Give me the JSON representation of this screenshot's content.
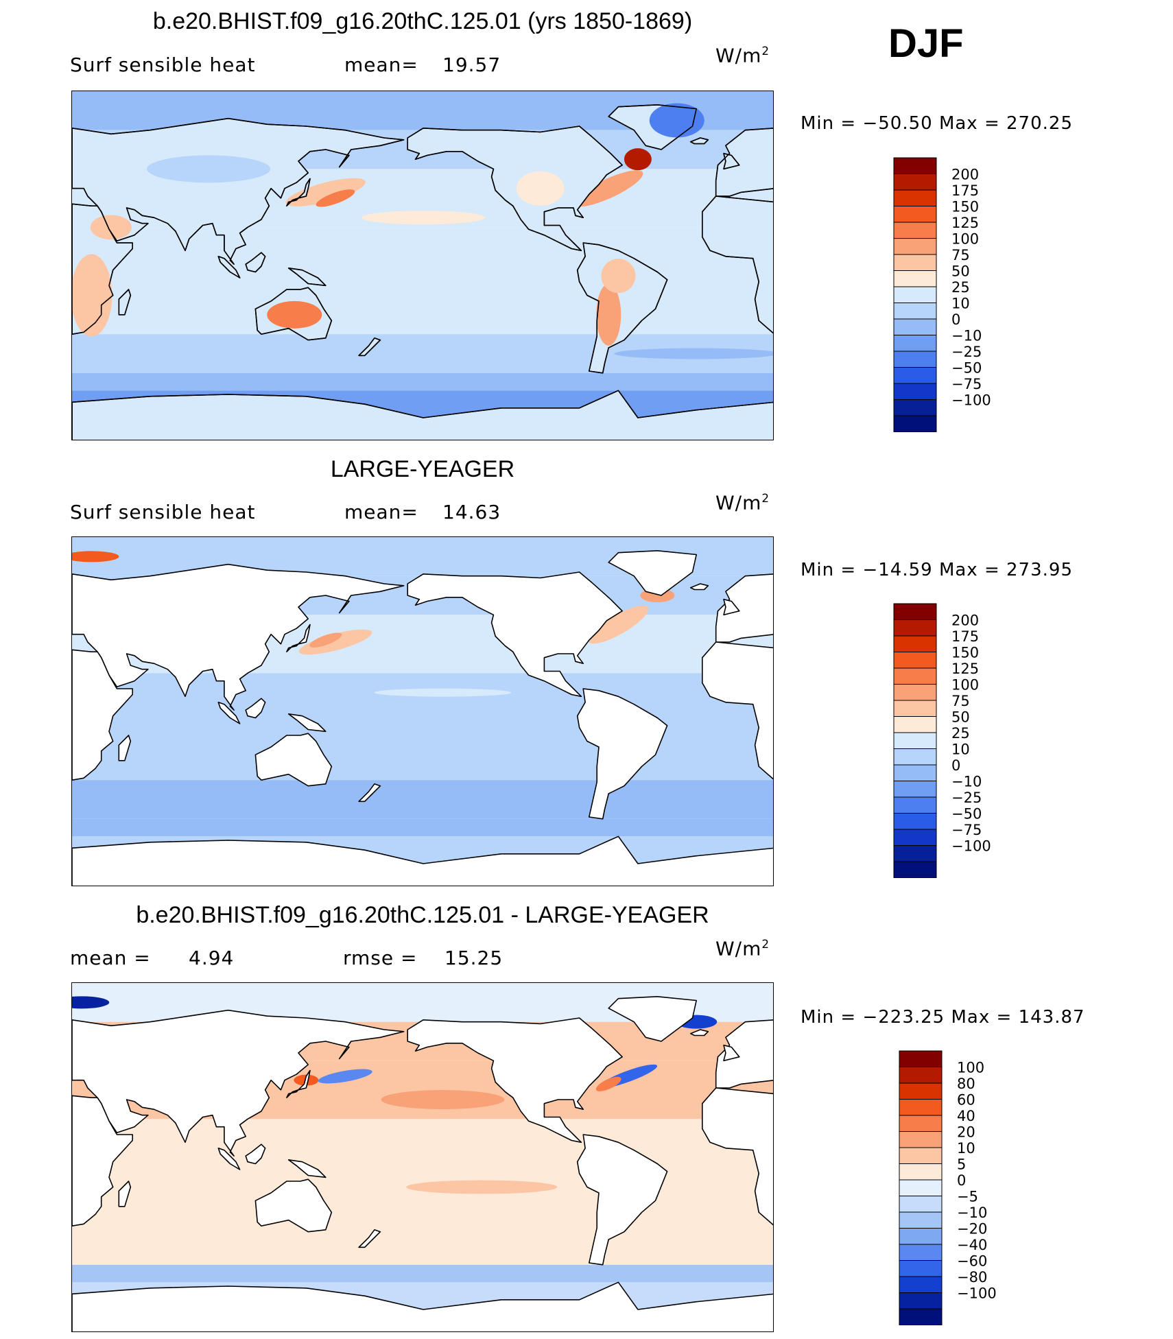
{
  "season": "DJF",
  "colors": {
    "model_scale": [
      "#820000",
      "#b31a00",
      "#d93300",
      "#f25a1f",
      "#f77e4a",
      "#faa277",
      "#fcc6a5",
      "#feead9",
      "#d7eafb",
      "#b7d4fa",
      "#95bcf7",
      "#6f9ef3",
      "#4e7ff0",
      "#2a5ce8",
      "#1337c8",
      "#062198",
      "#00107a"
    ],
    "diff_scale": [
      "#820000",
      "#b31a00",
      "#d93300",
      "#f25a1f",
      "#f77e4a",
      "#faa277",
      "#fcc6a5",
      "#feead9",
      "#e4f0fc",
      "#c6dcfa",
      "#a5c5f7",
      "#7fa8f3",
      "#5a88f0",
      "#3365ea",
      "#1440d0",
      "#06229f",
      "#00107a"
    ]
  },
  "chart_data": [
    {
      "type": "heatmap",
      "title": "b.e20.BHIST.f09_g16.20thC.125.01 (yrs 1850-1869)",
      "variable": "Surf sensible heat",
      "mean_label": "mean=",
      "mean": "19.57",
      "units": "W/m",
      "units_sup": "2",
      "min_label": "Min  =",
      "min": "−50.50",
      "max_label": "Max  =",
      "max": "270.25",
      "colorbar_labels": [
        "200",
        "175",
        "150",
        "125",
        "100",
        "75",
        "50",
        "25",
        "10",
        "0",
        "−10",
        "−25",
        "−50",
        "−75",
        "−100"
      ]
    },
    {
      "type": "heatmap",
      "title": "LARGE-YEAGER",
      "variable": "Surf sensible heat",
      "mean_label": "mean=",
      "mean": "14.63",
      "units": "W/m",
      "units_sup": "2",
      "min_label": "Min  =",
      "min": "−14.59",
      "max_label": "Max  =",
      "max": "273.95",
      "colorbar_labels": [
        "200",
        "175",
        "150",
        "125",
        "100",
        "75",
        "50",
        "25",
        "10",
        "0",
        "−10",
        "−25",
        "−50",
        "−75",
        "−100"
      ]
    },
    {
      "type": "heatmap",
      "title": "b.e20.BHIST.f09_g16.20thC.125.01 - LARGE-YEAGER",
      "mean_label": "mean =",
      "mean": "4.94",
      "rmse_label": "rmse =",
      "rmse": "15.25",
      "units": "W/m",
      "units_sup": "2",
      "min_label": "Min  =",
      "min": "−223.25",
      "max_label": "Max  =",
      "max": "143.87",
      "colorbar_labels": [
        "100",
        "80",
        "60",
        "40",
        "20",
        "10",
        "5",
        "0",
        "−5",
        "−10",
        "−20",
        "−40",
        "−60",
        "−80",
        "−100"
      ]
    }
  ]
}
